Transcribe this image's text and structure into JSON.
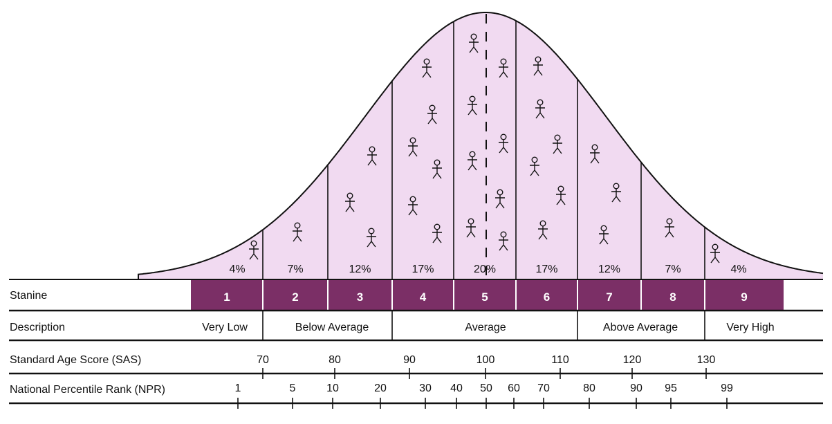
{
  "colors": {
    "curve_fill": "#f1daf1",
    "stanine_bar": "#7b2f66",
    "line": "#111111"
  },
  "icon": "stick-figure-person-icon",
  "bands": [
    {
      "stanine": "1",
      "percent": "4%"
    },
    {
      "stanine": "2",
      "percent": "7%"
    },
    {
      "stanine": "3",
      "percent": "12%"
    },
    {
      "stanine": "4",
      "percent": "17%"
    },
    {
      "stanine": "5",
      "percent": "20%"
    },
    {
      "stanine": "6",
      "percent": "17%"
    },
    {
      "stanine": "7",
      "percent": "12%"
    },
    {
      "stanine": "8",
      "percent": "7%"
    },
    {
      "stanine": "9",
      "percent": "4%"
    }
  ],
  "rows": {
    "stanine": "Stanine",
    "description": "Description",
    "sas": "Standard Age Score (SAS)",
    "npr": "National Percentile Rank (NPR)"
  },
  "descriptions": [
    "Very Low",
    "Below Average",
    "Average",
    "Above Average",
    "Very High"
  ],
  "sas_ticks": [
    "70",
    "80",
    "90",
    "100",
    "110",
    "120",
    "130"
  ],
  "npr_ticks": [
    "1",
    "5",
    "10",
    "20",
    "30",
    "40",
    "50",
    "60",
    "70",
    "80",
    "90",
    "95",
    "99"
  ]
}
